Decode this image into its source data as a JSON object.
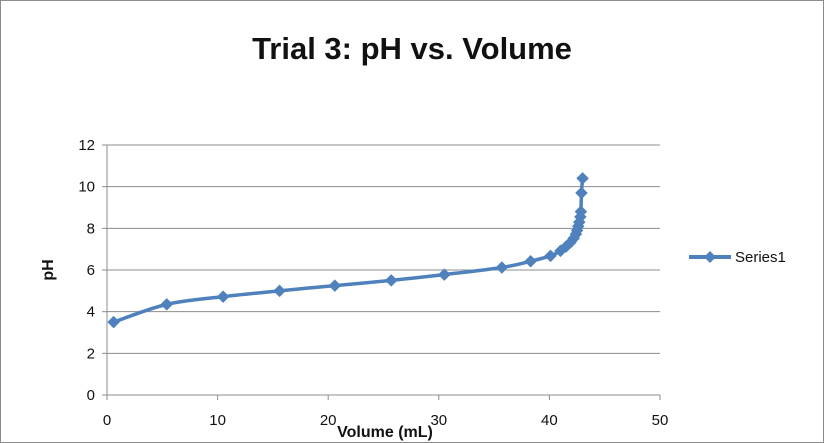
{
  "chart_data": {
    "type": "line",
    "title": "Trial 3: pH vs. Volume",
    "xlabel": "Volume (mL)",
    "ylabel": "pH",
    "xlim": [
      0,
      50
    ],
    "ylim": [
      0,
      12
    ],
    "xticks": [
      "0",
      "10",
      "20",
      "30",
      "40",
      "50"
    ],
    "yticks": [
      "0",
      "2",
      "4",
      "6",
      "8",
      "10",
      "12"
    ],
    "grid": "horizontal",
    "legend_position": "right",
    "marker": "diamond",
    "series": [
      {
        "name": "Series1",
        "color": "#4f81bd",
        "x": [
          0.6,
          5.4,
          10.5,
          15.6,
          20.6,
          25.7,
          30.5,
          35.7,
          38.3,
          40.1,
          41.0,
          41.5,
          41.9,
          42.2,
          42.4,
          42.5,
          42.6,
          42.7,
          42.8,
          42.85,
          42.9,
          43.0
        ],
        "y": [
          3.5,
          4.35,
          4.72,
          5.0,
          5.25,
          5.5,
          5.78,
          6.12,
          6.42,
          6.68,
          6.92,
          7.12,
          7.32,
          7.52,
          7.72,
          7.9,
          8.1,
          8.3,
          8.55,
          8.8,
          9.7,
          10.4
        ]
      }
    ]
  }
}
